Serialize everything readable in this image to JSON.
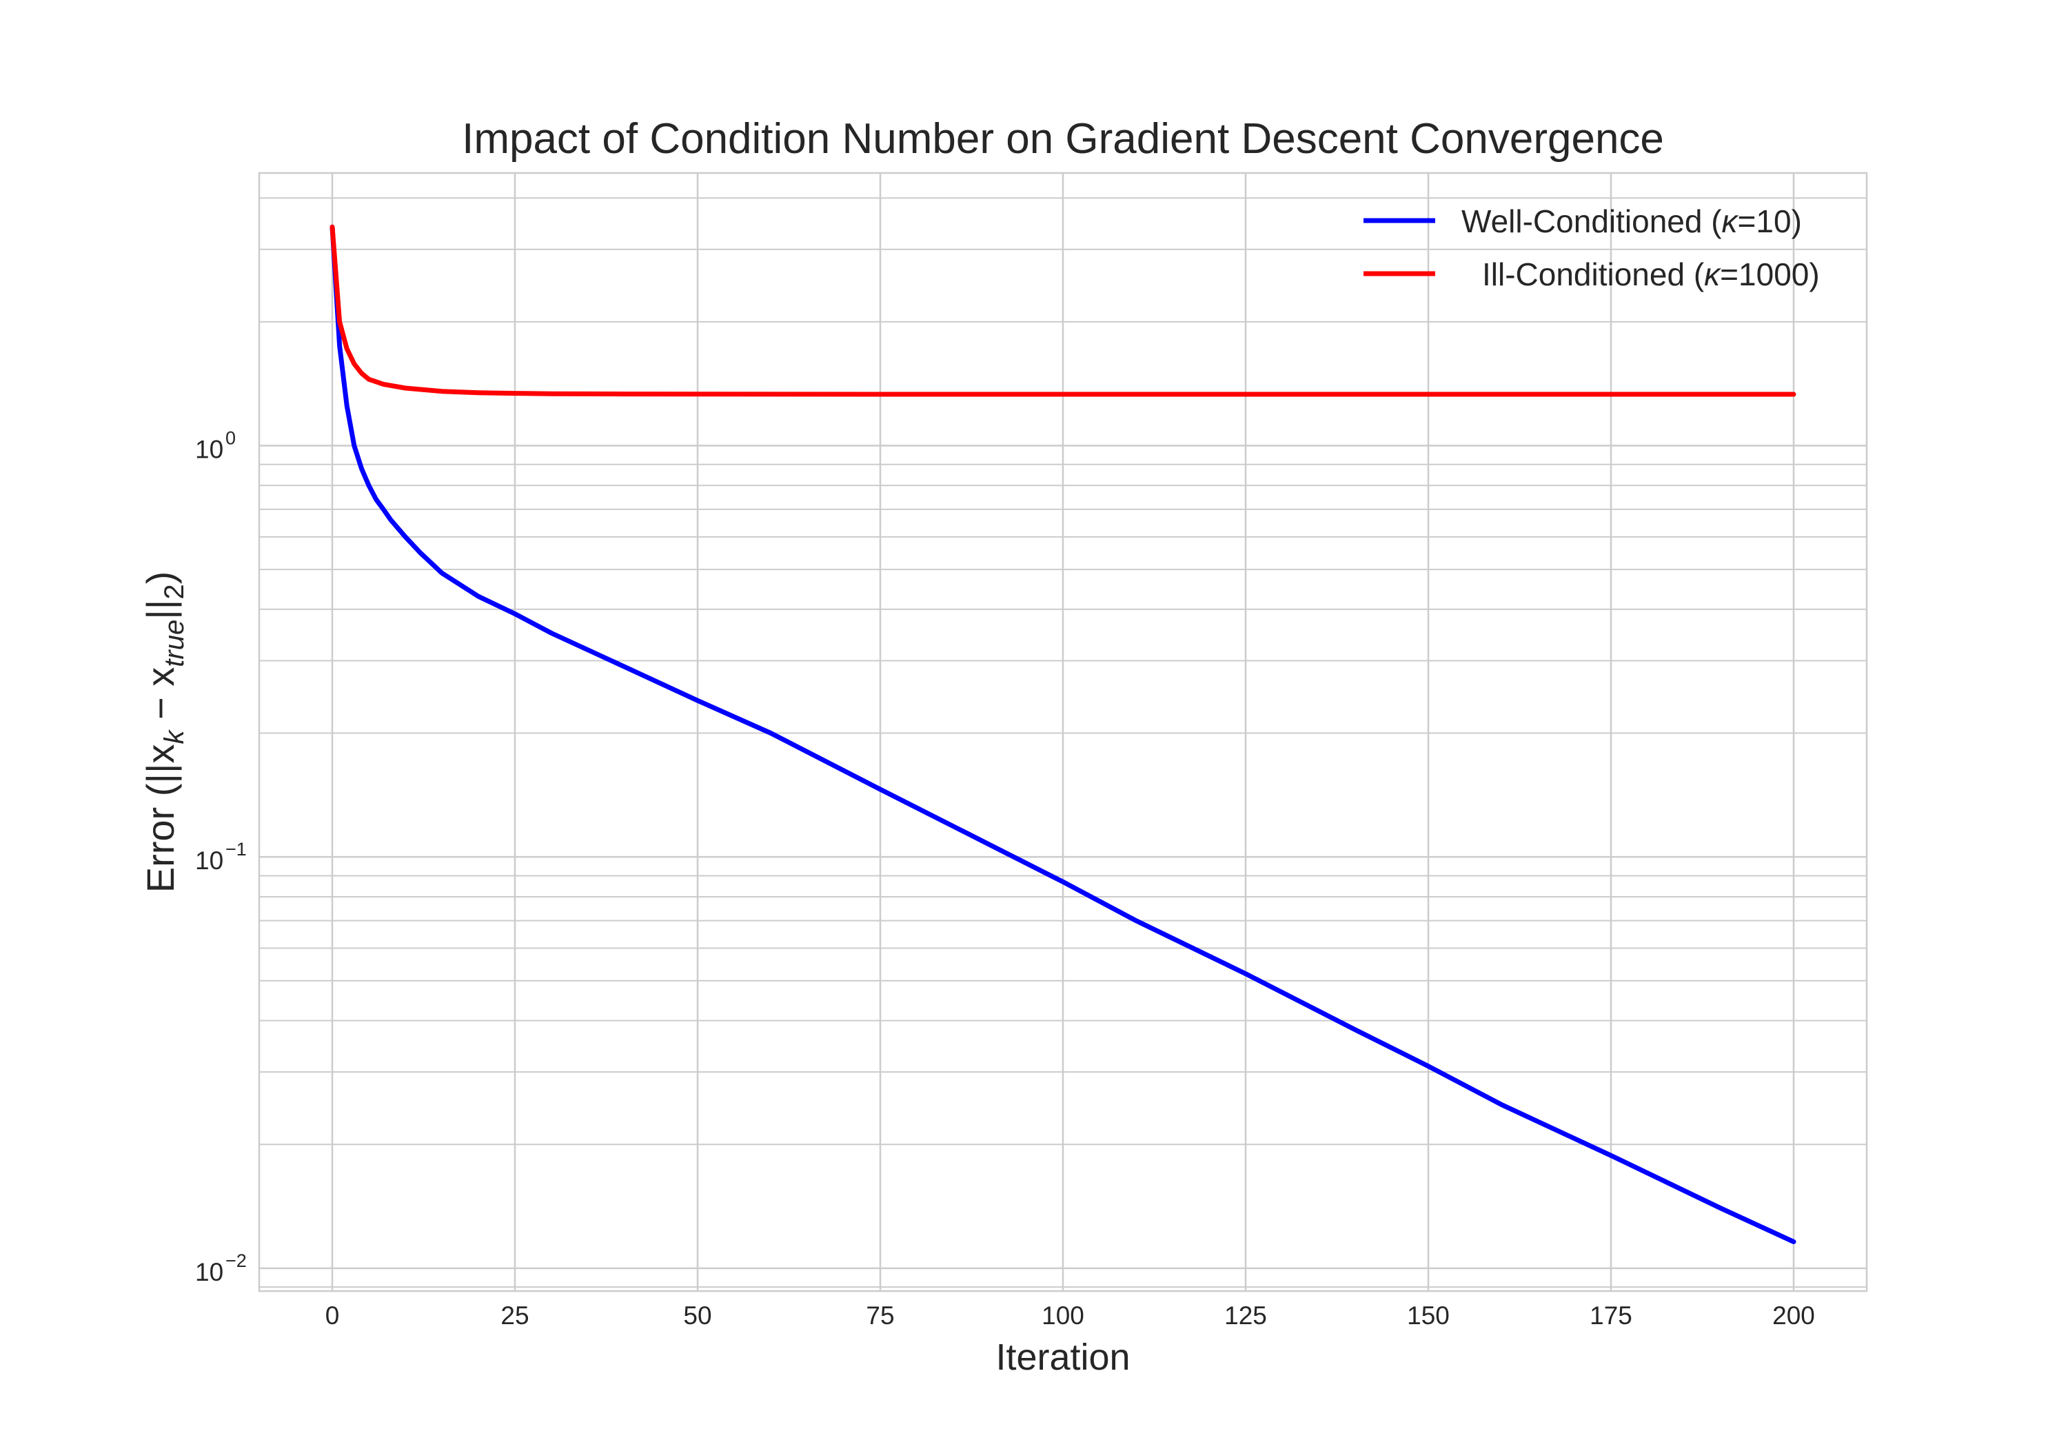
{
  "chart_data": {
    "type": "line",
    "title": "Impact of Condition Number on Gradient Descent Convergence",
    "xlabel": "Iteration",
    "ylabel": {
      "prefix": "Error (||x",
      "sub1": "k",
      "mid": " − x",
      "sub2": "true",
      "suffix": "||",
      "sub3": "2",
      "end": ")"
    },
    "x_scale": "linear",
    "y_scale": "log",
    "xlim": [
      -10,
      210
    ],
    "ylim": [
      0.0088,
      4.6
    ],
    "x_ticks": [
      0,
      25,
      50,
      75,
      100,
      125,
      150,
      175,
      200
    ],
    "y_ticks": [
      {
        "value": 0.01,
        "base": "10",
        "exp": "−2"
      },
      {
        "value": 0.1,
        "base": "10",
        "exp": "−1"
      },
      {
        "value": 1,
        "base": "10",
        "exp": "0"
      }
    ],
    "grid": true,
    "legend_position": "top-right",
    "series": [
      {
        "name": "Well-Conditioned (κ=10)",
        "legend_prefix": "Well-Conditioned (",
        "legend_symbol": "κ",
        "legend_suffix": "=10)",
        "color": "#0000ff",
        "x": [
          0,
          1,
          2,
          3,
          4,
          5,
          6,
          7,
          8,
          10,
          12,
          15,
          20,
          25,
          30,
          40,
          50,
          60,
          75,
          90,
          100,
          110,
          125,
          140,
          150,
          160,
          175,
          190,
          200
        ],
        "y": [
          3.4,
          1.75,
          1.25,
          1.0,
          0.88,
          0.8,
          0.74,
          0.7,
          0.66,
          0.6,
          0.55,
          0.49,
          0.43,
          0.39,
          0.35,
          0.29,
          0.24,
          0.2,
          0.146,
          0.107,
          0.087,
          0.07,
          0.052,
          0.038,
          0.031,
          0.025,
          0.0188,
          0.014,
          0.0116
        ]
      },
      {
        "name": "Ill-Conditioned (κ=1000)",
        "legend_prefix": "Ill-Conditioned (",
        "legend_symbol": "κ",
        "legend_suffix": "=1000)",
        "color": "#ff0000",
        "x": [
          0,
          1,
          2,
          3,
          4,
          5,
          7,
          10,
          15,
          20,
          25,
          30,
          40,
          50,
          75,
          100,
          125,
          150,
          175,
          200
        ],
        "y": [
          3.4,
          2.0,
          1.72,
          1.58,
          1.5,
          1.45,
          1.41,
          1.38,
          1.355,
          1.345,
          1.34,
          1.337,
          1.335,
          1.334,
          1.333,
          1.333,
          1.333,
          1.333,
          1.333,
          1.333
        ]
      }
    ]
  }
}
